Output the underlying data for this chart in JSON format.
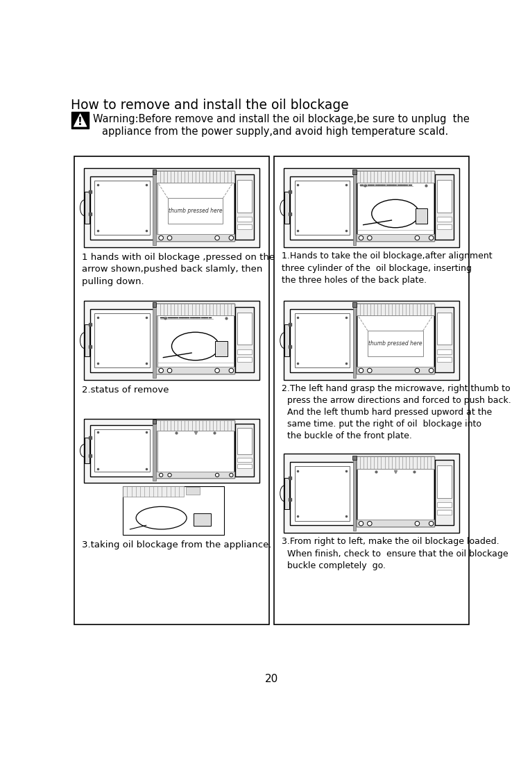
{
  "title": "How to remove and install the oil blockage",
  "warning_line1": "Warning:Before remove and install the oil blockage,be sure to unplug  the",
  "warning_line2": "appliance from the power supply,and avoid high temperature scald.",
  "left_captions": [
    "1 hands with oil blockage ,pressed on the\narrow shown,pushed back slamly, then\npulling down.",
    "2.status of remove",
    "3.taking oil blockage from the appliance."
  ],
  "right_captions": [
    "1.Hands to take the oil blockage,after alignment\nthree cylinder of the  oil blockage, inserting\nthe three holes of the back plate.",
    "2.The left hand grasp the microwave, right thumb to\n  press the arrow directions and forced to push back.\n  And the left thumb hard pressed upword at the\n  same time. put the right of oil  blockage into\n  the buckle of the front plate.",
    "3.From right to left, make the oil blockage loaded.\n  When finish, check to  ensure that the oil blockage\n  buckle completely  go."
  ],
  "thumb_text": "thumb pressed here",
  "page_number": "20",
  "bg_color": "#ffffff",
  "lc": "#000000"
}
